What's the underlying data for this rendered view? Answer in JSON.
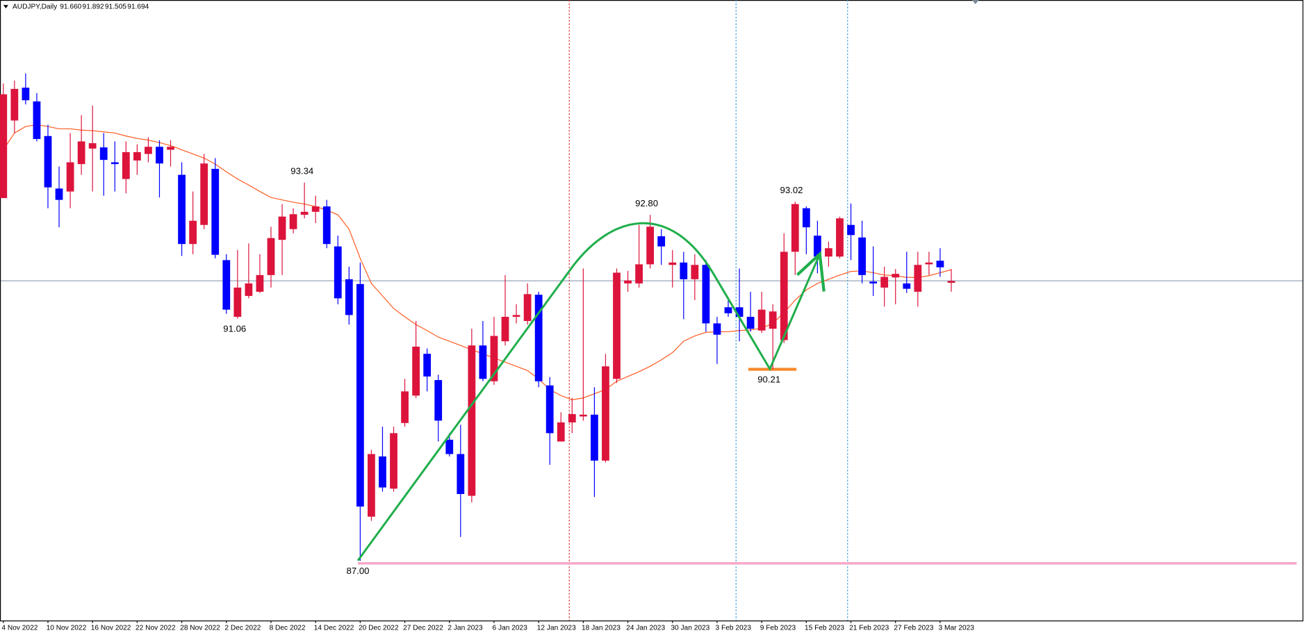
{
  "chart_data": {
    "type": "candlestick",
    "title": "AUDJPY,Daily",
    "quote": [
      {
        "value": 91.66,
        "label": "91.660"
      },
      {
        "value": 91.892,
        "label": "91.892"
      },
      {
        "value": 91.505,
        "label": "91.505"
      },
      {
        "value": 91.694,
        "label": "91.694"
      }
    ],
    "categories": [
      "4 Nov 2022",
      null,
      null,
      null,
      "10 Nov 2022",
      null,
      null,
      null,
      "16 Nov 2022",
      null,
      null,
      null,
      "22 Nov 2022",
      null,
      null,
      null,
      "28 Nov 2022",
      null,
      null,
      null,
      "2 Dec 2022",
      null,
      null,
      null,
      "8 Dec 2022",
      null,
      null,
      null,
      "14 Dec 2022",
      null,
      null,
      null,
      "20 Dec 2022",
      null,
      null,
      null,
      "27 Dec 2022",
      null,
      null,
      null,
      "2 Jan 2023",
      null,
      null,
      null,
      "6 Jan 2023",
      null,
      null,
      null,
      "12 Jan 2023",
      null,
      null,
      null,
      "18 Jan 2023",
      null,
      null,
      null,
      "24 Jan 2023",
      null,
      null,
      null,
      "30 Jan 2023",
      null,
      null,
      null,
      "3 Feb 2023",
      null,
      null,
      null,
      "9 Feb 2023",
      null,
      null,
      null,
      "15 Feb 2023",
      null,
      null,
      null,
      "21 Feb 2023",
      null,
      null,
      null,
      "27 Feb 2023",
      null,
      null,
      null,
      "3 Mar 2023",
      null
    ],
    "open": [
      93.08,
      94.38,
      94.93,
      94.7,
      94.12,
      93.24,
      93.19,
      93.65,
      93.91,
      93.93,
      93.68,
      93.4,
      93.71,
      93.82,
      93.94,
      93.89,
      93.47,
      92.31,
      92.63,
      93.57,
      92.04,
      91.09,
      91.44,
      91.51,
      91.79,
      92.38,
      92.56,
      92.8,
      92.85,
      92.94,
      92.27,
      91.72,
      91.64,
      87.74,
      88.75,
      88.21,
      89.31,
      89.77,
      90.47,
      90.03,
      89.03,
      88.79,
      88.09,
      90.61,
      90.01,
      90.68,
      91.09,
      91.02,
      91.46,
      89.94,
      89.0,
      89.32,
      89.42,
      89.45,
      88.68,
      90.05,
      91.65,
      91.65,
      91.97,
      92.44,
      91.96,
      92.0,
      91.72,
      91.96,
      90.98,
      91.25,
      91.25,
      91.09,
      90.86,
      90.89,
      90.7,
      92.18,
      92.91,
      92.45,
      92.1,
      92.1,
      92.63,
      92.42,
      91.68,
      91.58,
      91.75,
      91.65,
      91.51,
      91.97,
      92.03,
      91.66
    ],
    "high": [
      95.0,
      95.05,
      95.17,
      94.84,
      94.31,
      93.61,
      94.17,
      94.47,
      94.63,
      94.17,
      94.03,
      94.03,
      93.98,
      94.1,
      94.05,
      94.05,
      93.68,
      93.19,
      93.82,
      93.75,
      92.14,
      92.21,
      92.32,
      92.14,
      92.6,
      92.98,
      92.91,
      93.34,
      93.12,
      93.05,
      92.45,
      91.93,
      92.0,
      88.86,
      89.25,
      89.25,
      90.05,
      91.02,
      90.56,
      90.12,
      89.14,
      89.28,
      90.89,
      91.02,
      91.09,
      91.79,
      91.3,
      91.65,
      91.51,
      90.08,
      89.49,
      89.73,
      91.9,
      89.91,
      90.47,
      91.9,
      91.86,
      92.63,
      92.8,
      92.56,
      92.21,
      92.18,
      92.14,
      92.04,
      91.09,
      91.37,
      91.9,
      91.51,
      91.51,
      91.3,
      92.49,
      93.02,
      92.94,
      92.7,
      92.35,
      92.77,
      92.99,
      92.7,
      92.27,
      91.93,
      91.89,
      92.18,
      92.18,
      92.18,
      92.24,
      91.89
    ],
    "low": [
      93.08,
      94.17,
      94.65,
      94.03,
      92.91,
      92.59,
      92.91,
      93.47,
      93.19,
      93.12,
      93.19,
      93.16,
      93.47,
      93.68,
      93.09,
      93.61,
      92.11,
      92.14,
      92.56,
      92.07,
      91.14,
      91.06,
      91.4,
      91.49,
      91.58,
      91.79,
      92.49,
      92.74,
      92.66,
      92.24,
      91.3,
      90.96,
      87.0,
      87.67,
      88.16,
      88.16,
      89.25,
      89.73,
      89.84,
      89.0,
      88.75,
      87.4,
      87.98,
      90.01,
      89.95,
      90.61,
      90.98,
      90.96,
      89.91,
      88.61,
      89.0,
      89.14,
      89.35,
      88.07,
      88.65,
      89.98,
      91.51,
      91.58,
      91.9,
      91.96,
      91.58,
      91.05,
      91.37,
      90.84,
      90.3,
      91.09,
      90.68,
      90.84,
      90.82,
      90.21,
      90.65,
      91.79,
      92.14,
      91.82,
      91.93,
      92.07,
      92.04,
      91.65,
      91.44,
      91.26,
      91.3,
      91.49,
      91.26,
      91.79,
      91.76,
      91.51
    ],
    "close": [
      94.82,
      94.91,
      94.72,
      94.07,
      93.26,
      93.05,
      93.68,
      94.03,
      94.0,
      93.72,
      93.65,
      93.85,
      93.85,
      93.94,
      93.66,
      93.94,
      92.31,
      92.7,
      93.66,
      92.13,
      91.21,
      91.58,
      91.65,
      91.79,
      92.41,
      92.77,
      92.81,
      92.85,
      92.94,
      92.31,
      91.4,
      91.12,
      87.91,
      88.79,
      88.23,
      89.14,
      89.84,
      90.59,
      90.09,
      89.35,
      88.79,
      88.12,
      90.61,
      90.05,
      90.77,
      91.09,
      91.12,
      91.47,
      90.01,
      89.14,
      89.32,
      89.46,
      89.45,
      88.68,
      90.26,
      91.83,
      91.7,
      91.97,
      92.6,
      92.27,
      92.0,
      91.72,
      91.96,
      90.98,
      90.79,
      91.15,
      91.09,
      90.89,
      91.21,
      91.18,
      92.18,
      92.98,
      92.59,
      92.1,
      92.24,
      92.74,
      92.46,
      91.79,
      91.65,
      91.76,
      91.81,
      91.56,
      91.96,
      92.0,
      91.92,
      91.69
    ],
    "up_color": "#dc143c",
    "down_color": "#0000ff",
    "ma": {
      "color": "#ff5a1f",
      "values": [
        93.89,
        94.17,
        94.28,
        94.31,
        94.28,
        94.24,
        94.24,
        94.22,
        94.21,
        94.19,
        94.17,
        94.12,
        94.08,
        94.05,
        94.01,
        93.96,
        93.89,
        93.82,
        93.75,
        93.65,
        93.52,
        93.4,
        93.3,
        93.19,
        93.09,
        93.05,
        93.01,
        92.98,
        92.94,
        92.88,
        92.8,
        92.56,
        92.07,
        91.65,
        91.44,
        91.23,
        91.09,
        90.96,
        90.86,
        90.75,
        90.68,
        90.61,
        90.54,
        90.47,
        90.4,
        90.33,
        90.26,
        90.19,
        90.05,
        89.87,
        89.77,
        89.7,
        89.73,
        89.8,
        89.87,
        90.01,
        90.09,
        90.17,
        90.26,
        90.37,
        90.49,
        90.68,
        90.77,
        90.83,
        90.84,
        90.84,
        90.86,
        90.87,
        90.9,
        90.98,
        91.16,
        91.37,
        91.54,
        91.65,
        91.72,
        91.79,
        91.85,
        91.86,
        91.83,
        91.79,
        91.78,
        91.75,
        91.75,
        91.78,
        91.83,
        91.88
      ]
    },
    "ylim": [
      86.0,
      96.4
    ],
    "annotations": [
      {
        "value": 93.34,
        "label": "93.34"
      },
      {
        "value": 91.06,
        "label": "91.06"
      },
      {
        "value": 92.8,
        "label": "92.80"
      },
      {
        "value": 93.02,
        "label": "93.02"
      },
      {
        "value": 90.21,
        "label": "90.21"
      },
      {
        "value": 87.0,
        "label": "87.00"
      }
    ]
  }
}
